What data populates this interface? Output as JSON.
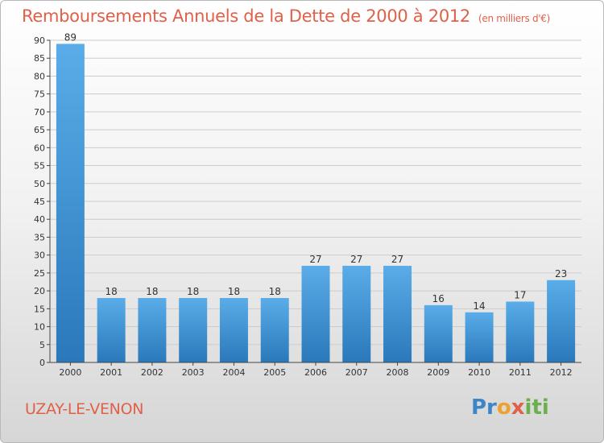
{
  "header": {
    "title": "Remboursements Annuels de la Dette de 2000 à 2012",
    "unit": "(en milliers d'€)"
  },
  "footer": {
    "city": "UZAY-LE-VENON",
    "logo": "Proxiti",
    "logo_parts": [
      "Pr",
      "o",
      "x",
      "iti"
    ]
  },
  "colors": {
    "bar_top": "#5aade8",
    "bar_bottom": "#2a78bb",
    "title": "#e0604a",
    "grid": "#cccccc"
  },
  "chart_data": {
    "type": "bar",
    "title": "Remboursements Annuels de la Dette de 2000 à 2012",
    "subtitle": "(en milliers d'€)",
    "categories": [
      "2000",
      "2001",
      "2002",
      "2003",
      "2004",
      "2005",
      "2006",
      "2007",
      "2008",
      "2009",
      "2010",
      "2011",
      "2012"
    ],
    "values": [
      89,
      18,
      18,
      18,
      18,
      18,
      27,
      27,
      27,
      16,
      14,
      17,
      23
    ],
    "ylim": [
      0,
      90
    ],
    "yticks": [
      0,
      5,
      10,
      15,
      20,
      25,
      30,
      35,
      40,
      45,
      50,
      55,
      60,
      65,
      70,
      75,
      80,
      85,
      90
    ],
    "grid": true,
    "data_labels": true
  }
}
